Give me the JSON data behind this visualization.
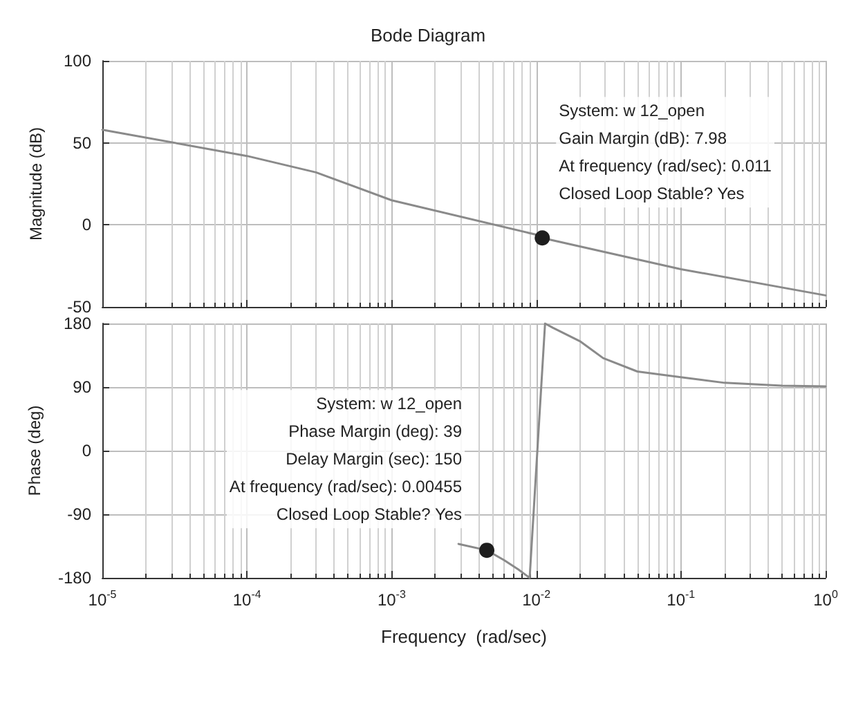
{
  "chart_data": [
    {
      "type": "line",
      "title": "Bode Diagram",
      "ylabel": "Magnitude (dB)",
      "log": "x",
      "grid": true,
      "tick_labels": "y",
      "xlim": [
        1e-05,
        1
      ],
      "xticks": [
        {
          "value": 1e-05,
          "label": null
        },
        {
          "value": 0.0001,
          "label": null
        },
        {
          "value": 0.001,
          "label": null
        },
        {
          "value": 0.01,
          "label": null
        },
        {
          "value": 0.1,
          "label": null
        },
        {
          "value": 1,
          "label": null
        }
      ],
      "ylim": [
        -50,
        100
      ],
      "yticks": [
        -50,
        0,
        50,
        100
      ],
      "series": [
        {
          "color": "#8a8a8a",
          "line_style": "solid",
          "x": [
            1e-05,
            0.0001,
            0.0003,
            0.001,
            0.01,
            0.011,
            0.1,
            1
          ],
          "values": [
            58,
            42,
            32,
            15,
            -6,
            -7.98,
            -27,
            -43
          ]
        },
        {
          "type": "scatter",
          "marker": "circle",
          "color": "#1e1e1e",
          "x": [
            0.011
          ],
          "values": [
            -7.98
          ]
        }
      ],
      "annotations": [
        {
          "text": "System: w 12_open\nGain Margin (dB): 7.98\nAt frequency (rad/sec): 0.011\nClosed Loop Stable? Yes",
          "x": 0.011,
          "y": -7.98
        }
      ]
    },
    {
      "type": "line",
      "xlabel": "Frequency  (rad/sec)",
      "ylabel": "Phase (deg)",
      "log": "x",
      "grid": true,
      "xlim": [
        1e-05,
        1
      ],
      "xticks": [
        {
          "value": 1e-05,
          "label": "10$^{-5}$"
        },
        {
          "value": 0.0001,
          "label": "10$^{-4}$"
        },
        {
          "value": 0.001,
          "label": "10$^{-3}$"
        },
        {
          "value": 0.01,
          "label": "10$^{-2}$"
        },
        {
          "value": 0.1,
          "label": "10$^{-1}$"
        },
        {
          "value": 1,
          "label": "10$^{0}$"
        }
      ],
      "ylim": [
        -180,
        180
      ],
      "yticks": [
        -180,
        -90,
        0,
        90,
        180
      ],
      "series": [
        {
          "color": "#8a8a8a",
          "line_style": "solid",
          "x": [
            0.0029,
            0.00455,
            0.006,
            0.0075,
            0.009,
            0.0115,
            0.013,
            0.02,
            0.029,
            0.05,
            0.1,
            0.2,
            0.5,
            1
          ],
          "values": [
            -132,
            -141,
            -155,
            -168,
            -180,
            180,
            174,
            155,
            131,
            112,
            104,
            96,
            92,
            91
          ]
        },
        {
          "type": "scatter",
          "marker": "circle",
          "color": "#1e1e1e",
          "x": [
            0.00455
          ],
          "values": [
            -141
          ]
        }
      ],
      "annotations": [
        {
          "text": "System: w 12_open\nPhase Margin (deg): 39\nDelay Margin (sec): 150\nAt frequency (rad/sec): 0.00455\nClosed Loop Stable? Yes",
          "x": 0.00455,
          "y": -141
        }
      ]
    }
  ]
}
